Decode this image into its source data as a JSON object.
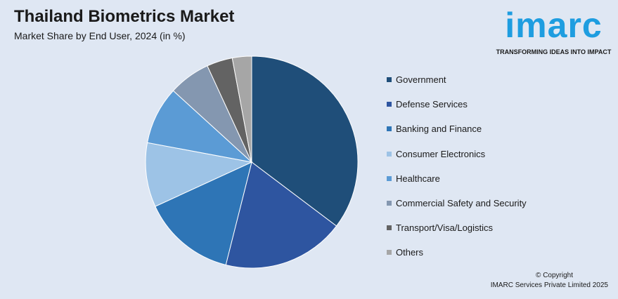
{
  "header": {
    "title": "Thailand Biometrics Market",
    "subtitle": "Market Share by End User, 2024 (in %)"
  },
  "logo": {
    "word": "imarc",
    "tagline": "TRANSFORMING IDEAS INTO IMPACT",
    "color": "#1e9de0"
  },
  "footer": {
    "copyright_line1": "© Copyright",
    "copyright_line2": "IMARC Services Private Limited 2025"
  },
  "chart_data": {
    "type": "pie",
    "title": "Thailand Biometrics Market",
    "subtitle": "Market Share by End User, 2024 (in %)",
    "legend_position": "right",
    "slices": [
      {
        "label": "Government",
        "value": 36,
        "color": "#1f4e79"
      },
      {
        "label": "Defense Services",
        "value": 19,
        "color": "#2e55a0"
      },
      {
        "label": "Banking and Finance",
        "value": 14.5,
        "color": "#2e75b6"
      },
      {
        "label": "Consumer Electronics",
        "value": 10,
        "color": "#9dc3e6"
      },
      {
        "label": "Healthcare",
        "value": 9,
        "color": "#5b9bd5"
      },
      {
        "label": "Commercial Safety and Security",
        "value": 6.5,
        "color": "#8497b0"
      },
      {
        "label": "Transport/Visa/Logistics",
        "value": 4,
        "color": "#636363"
      },
      {
        "label": "Others",
        "value": 3,
        "color": "#a6a6a6"
      }
    ]
  }
}
